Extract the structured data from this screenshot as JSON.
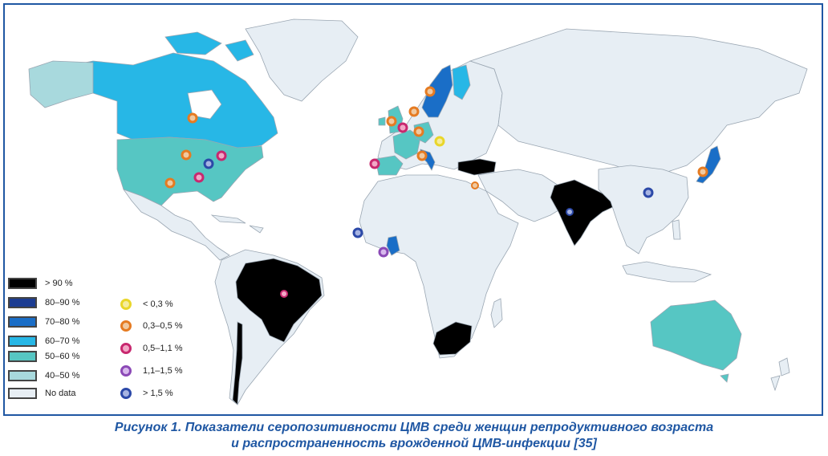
{
  "colors": {
    "ocean": "#ffffff",
    "land_no_data": "#e7eef4",
    "border": "#9aa6b2",
    "frame": "#1f57a3",
    "caption": "#1f57a3",
    "seropositivity": {
      "gt90": "#000000",
      "80_90": "#1c3c92",
      "70_80": "#1a6ec7",
      "60_70": "#27b7e6",
      "50_60": "#56c6c3",
      "40_50": "#a8d9dd",
      "no_data": "#e7eef4"
    },
    "prevalence": {
      "lt0_3": "#e9d62a",
      "0_3_0_5": "#e57b22",
      "0_5_1_1": "#c8286f",
      "1_1_1_5": "#8b49b6",
      "gt1_5": "#2c49a8"
    }
  },
  "legend": {
    "seropositivity": [
      {
        "key": "gt90",
        "label": "> 90 %"
      },
      {
        "key": "80_90",
        "label": "80–90 %"
      },
      {
        "key": "70_80",
        "label": "70–80 %"
      },
      {
        "key": "60_70",
        "label": "60–70 %"
      },
      {
        "key": "50_60",
        "label": "50–60 %"
      },
      {
        "key": "40_50",
        "label": "40–50 %"
      },
      {
        "key": "no_data",
        "label": "No data"
      }
    ],
    "prevalence": [
      {
        "key": "lt0_3",
        "label": "< 0,3 %"
      },
      {
        "key": "0_3_0_5",
        "label": "0,3–0,5 %"
      },
      {
        "key": "0_5_1_1",
        "label": "0,5–1,1 %"
      },
      {
        "key": "1_1_1_5",
        "label": "1,1–1,5 %"
      },
      {
        "key": "gt1_5",
        "label": "> 1,5 %"
      }
    ]
  },
  "caption": {
    "line1": "Рисунок 1. Показатели серопозитивности ЦМВ среди женщин репродуктивного возраста",
    "line2": "и распространенность врожденной ЦМВ-инфекции [35]"
  }
}
